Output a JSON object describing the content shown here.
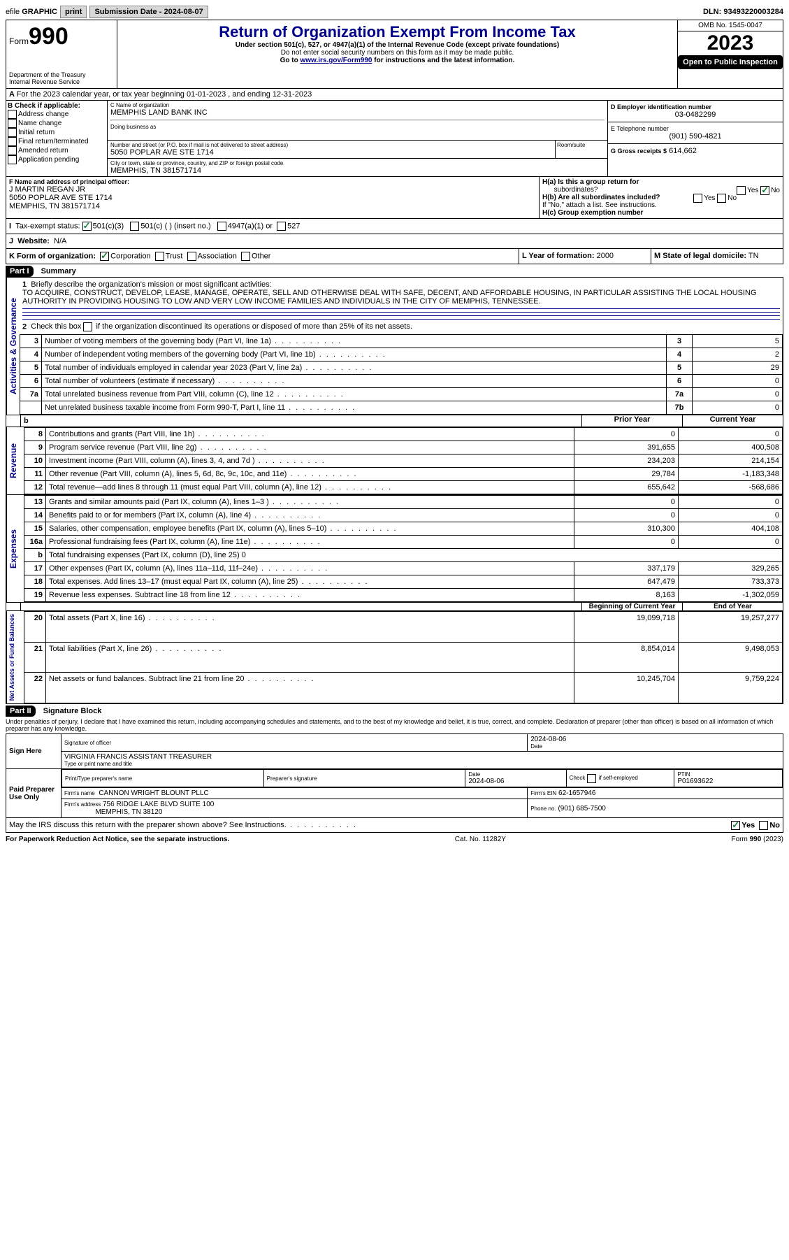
{
  "topbar": {
    "efile_prefix": "efile",
    "efile_bold": "GRAPHIC",
    "print": "print",
    "submission_label": "Submission Date - 2024-08-07",
    "dln_label": "DLN:",
    "dln": "93493220003284"
  },
  "header": {
    "form_label": "Form",
    "form_number": "990",
    "dept": "Department of the Treasury",
    "irs": "Internal Revenue Service",
    "title": "Return of Organization Exempt From Income Tax",
    "subtitle1": "Under section 501(c), 527, or 4947(a)(1) of the Internal Revenue Code (except private foundations)",
    "subtitle2": "Do not enter social security numbers on this form as it may be made public.",
    "goto_prefix": "Go to ",
    "goto_link": "www.irs.gov/Form990",
    "goto_suffix": " for instructions and the latest information.",
    "omb": "OMB No. 1545-0047",
    "year": "2023",
    "open_public": "Open to Public Inspection"
  },
  "period": "For the 2023 calendar year, or tax year beginning 01-01-2023  , and ending 12-31-2023",
  "boxA": "A",
  "boxB": {
    "label": "B Check if applicable:",
    "items": [
      "Address change",
      "Name change",
      "Initial return",
      "Final return/terminated",
      "Amended return",
      "Application pending"
    ]
  },
  "boxC": {
    "name_label": "C Name of organization",
    "name": "MEMPHIS LAND BANK INC",
    "dba_label": "Doing business as",
    "street_label": "Number and street (or P.O. box if mail is not delivered to street address)",
    "room_label": "Room/suite",
    "street": "5050 POPLAR AVE STE 1714",
    "city_label": "City or town, state or province, country, and ZIP or foreign postal code",
    "city": "MEMPHIS, TN  381571714"
  },
  "boxD": {
    "label": "D Employer identification number",
    "value": "03-0482299"
  },
  "boxE": {
    "label": "E Telephone number",
    "value": "(901) 590-4821"
  },
  "boxG": {
    "label": "G Gross receipts $",
    "value": "614,662"
  },
  "boxF": {
    "label": "F Name and address of principal officer:",
    "name": "J MARTIN REGAN JR",
    "street": "5050 POPLAR AVE STE 1714",
    "city": "MEMPHIS, TN  381571714"
  },
  "boxH": {
    "a_label": "H(a)  Is this a group return for",
    "a_label2": "subordinates?",
    "a_no": "No",
    "b_label": "H(b)  Are all subordinates included?",
    "b_note": "If \"No,\" attach a list. See instructions.",
    "c_label": "H(c)  Group exemption number",
    "yes": "Yes",
    "no": "No"
  },
  "boxI": {
    "label": "Tax-exempt status:",
    "opt1": "501(c)(3)",
    "opt2": "501(c) (  ) (insert no.)",
    "opt3": "4947(a)(1) or",
    "opt4": "527"
  },
  "boxJ": {
    "label": "Website:",
    "value": "N/A"
  },
  "boxK": {
    "label": "K Form of organization:",
    "opts": [
      "Corporation",
      "Trust",
      "Association",
      "Other"
    ]
  },
  "boxL": {
    "label": "L Year of formation:",
    "value": "2000"
  },
  "boxM": {
    "label": "M State of legal domicile:",
    "value": "TN"
  },
  "part1": {
    "header": "Part I",
    "title": "Summary",
    "q1_label": "Briefly describe the organization's mission or most significant activities:",
    "q1_text": "TO ACQUIRE, CONSTRUCT, DEVELOP, LEASE, MANAGE, OPERATE, SELL AND OTHERWISE DEAL WITH SAFE, DECENT, AND AFFORDABLE HOUSING, IN PARTICULAR ASSISTING THE LOCAL HOUSING AUTHORITY IN PROVIDING HOUSING TO LOW AND VERY LOW INCOME FAMILIES AND INDIVIDUALS IN THE CITY OF MEMPHIS, TENNESSEE.",
    "q2": "Check this box     if the organization discontinued its operations or disposed of more than 25% of its net assets.",
    "lines_ag": [
      {
        "n": "3",
        "t": "Number of voting members of the governing body (Part VI, line 1a)",
        "c": "3",
        "v": "5"
      },
      {
        "n": "4",
        "t": "Number of independent voting members of the governing body (Part VI, line 1b)",
        "c": "4",
        "v": "2"
      },
      {
        "n": "5",
        "t": "Total number of individuals employed in calendar year 2023 (Part V, line 2a)",
        "c": "5",
        "v": "29"
      },
      {
        "n": "6",
        "t": "Total number of volunteers (estimate if necessary)",
        "c": "6",
        "v": "0"
      },
      {
        "n": "7a",
        "t": "Total unrelated business revenue from Part VIII, column (C), line 12",
        "c": "7a",
        "v": "0"
      },
      {
        "n": "",
        "t": "Net unrelated business taxable income from Form 990-T, Part I, line 11",
        "c": "7b",
        "v": "0"
      }
    ],
    "col_prior": "Prior Year",
    "col_current": "Current Year",
    "col_begin": "Beginning of Current Year",
    "col_end": "End of Year",
    "rev": [
      {
        "n": "8",
        "t": "Contributions and grants (Part VIII, line 1h)",
        "p": "0",
        "c": "0"
      },
      {
        "n": "9",
        "t": "Program service revenue (Part VIII, line 2g)",
        "p": "391,655",
        "c": "400,508"
      },
      {
        "n": "10",
        "t": "Investment income (Part VIII, column (A), lines 3, 4, and 7d )",
        "p": "234,203",
        "c": "214,154"
      },
      {
        "n": "11",
        "t": "Other revenue (Part VIII, column (A), lines 5, 6d, 8c, 9c, 10c, and 11e)",
        "p": "29,784",
        "c": "-1,183,348"
      },
      {
        "n": "12",
        "t": "Total revenue—add lines 8 through 11 (must equal Part VIII, column (A), line 12)",
        "p": "655,642",
        "c": "-568,686"
      }
    ],
    "exp": [
      {
        "n": "13",
        "t": "Grants and similar amounts paid (Part IX, column (A), lines 1–3 )",
        "p": "0",
        "c": "0"
      },
      {
        "n": "14",
        "t": "Benefits paid to or for members (Part IX, column (A), line 4)",
        "p": "0",
        "c": "0"
      },
      {
        "n": "15",
        "t": "Salaries, other compensation, employee benefits (Part IX, column (A), lines 5–10)",
        "p": "310,300",
        "c": "404,108"
      },
      {
        "n": "16a",
        "t": "Professional fundraising fees (Part IX, column (A), line 11e)",
        "p": "0",
        "c": "0"
      },
      {
        "n": "b",
        "t": "Total fundraising expenses (Part IX, column (D), line 25) 0",
        "p": "",
        "c": ""
      },
      {
        "n": "17",
        "t": "Other expenses (Part IX, column (A), lines 11a–11d, 11f–24e)",
        "p": "337,179",
        "c": "329,265"
      },
      {
        "n": "18",
        "t": "Total expenses. Add lines 13–17 (must equal Part IX, column (A), line 25)",
        "p": "647,479",
        "c": "733,373"
      },
      {
        "n": "19",
        "t": "Revenue less expenses. Subtract line 18 from line 12",
        "p": "8,163",
        "c": "-1,302,059"
      }
    ],
    "net": [
      {
        "n": "20",
        "t": "Total assets (Part X, line 16)",
        "p": "19,099,718",
        "c": "19,257,277"
      },
      {
        "n": "21",
        "t": "Total liabilities (Part X, line 26)",
        "p": "8,854,014",
        "c": "9,498,053"
      },
      {
        "n": "22",
        "t": "Net assets or fund balances. Subtract line 21 from line 20",
        "p": "10,245,704",
        "c": "9,759,224"
      }
    ],
    "side_ag": "Activities & Governance",
    "side_rev": "Revenue",
    "side_exp": "Expenses",
    "side_net": "Net Assets or Fund Balances"
  },
  "part2": {
    "header": "Part II",
    "title": "Signature Block",
    "perjury": "Under penalties of perjury, I declare that I have examined this return, including accompanying schedules and statements, and to the best of my knowledge and belief, it is true, correct, and complete. Declaration of preparer (other than officer) is based on all information of which preparer has any knowledge.",
    "sign_here": "Sign Here",
    "officer_sig_label": "Signature of officer",
    "officer_name": "VIRGINIA FRANCIS  ASSISTANT TREASURER",
    "officer_name_label": "Type or print name and title",
    "date_label": "Date",
    "date_value": "2024-08-06",
    "paid": "Paid Preparer Use Only",
    "prep_name_label": "Print/Type preparer's name",
    "prep_sig_label": "Preparer's signature",
    "prep_date": "2024-08-06",
    "check_label": "Check      if self-employed",
    "ptin_label": "PTIN",
    "ptin": "P01693622",
    "firm_name_label": "Firm's name",
    "firm_name": "CANNON WRIGHT BLOUNT PLLC",
    "firm_ein_label": "Firm's EIN",
    "firm_ein": "62-1657946",
    "firm_addr_label": "Firm's address",
    "firm_addr1": "756 RIDGE LAKE BLVD SUITE 100",
    "firm_addr2": "MEMPHIS, TN  38120",
    "phone_label": "Phone no.",
    "phone": "(901) 685-7500",
    "discuss": "May the IRS discuss this return with the preparer shown above? See Instructions."
  },
  "footer": {
    "paperwork": "For Paperwork Reduction Act Notice, see the separate instructions.",
    "cat": "Cat. No. 11282Y",
    "form": "Form 990 (2023)"
  },
  "colors": {
    "dark_blue": "#00008b",
    "check_green": "#1a7f37"
  }
}
